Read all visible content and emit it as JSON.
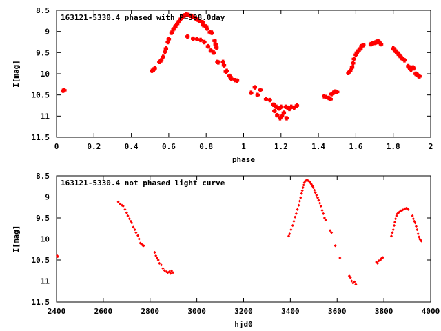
{
  "chart_data": [
    {
      "type": "scatter",
      "title": "163121-5330.4 phased with P=398.0day",
      "xlabel": "phase",
      "ylabel": "I[mag]",
      "xlim": [
        0,
        2
      ],
      "ylim": [
        11.5,
        8.5
      ],
      "y_inverted": true,
      "grid": false,
      "marker_color": "#ff0000",
      "x_ticks": [
        "0",
        "0.2",
        "0.4",
        "0.6",
        "0.8",
        "1",
        "1.2",
        "1.4",
        "1.6",
        "1.8",
        "2"
      ],
      "y_ticks": [
        "8.5",
        "9",
        "9.5",
        "10",
        "10.5",
        "11",
        "11.5"
      ],
      "series": [
        {
          "points": [
            [
              0.035,
              10.4
            ],
            [
              0.042,
              10.39
            ],
            [
              0.51,
              9.93
            ],
            [
              0.52,
              9.9
            ],
            [
              0.525,
              9.87
            ],
            [
              0.55,
              9.72
            ],
            [
              0.56,
              9.68
            ],
            [
              0.57,
              9.6
            ],
            [
              0.58,
              9.48
            ],
            [
              0.585,
              9.4
            ],
            [
              0.595,
              9.25
            ],
            [
              0.6,
              9.18
            ],
            [
              0.615,
              9.03
            ],
            [
              0.625,
              8.95
            ],
            [
              0.635,
              8.88
            ],
            [
              0.645,
              8.82
            ],
            [
              0.655,
              8.76
            ],
            [
              0.665,
              8.7
            ],
            [
              0.675,
              8.65
            ],
            [
              0.685,
              8.62
            ],
            [
              0.695,
              8.6
            ],
            [
              0.7,
              9.12
            ],
            [
              0.705,
              8.61
            ],
            [
              0.715,
              8.63
            ],
            [
              0.725,
              8.65
            ],
            [
              0.73,
              9.17
            ],
            [
              0.74,
              8.68
            ],
            [
              0.745,
              8.7
            ],
            [
              0.75,
              9.18
            ],
            [
              0.755,
              8.72
            ],
            [
              0.765,
              8.75
            ],
            [
              0.77,
              9.2
            ],
            [
              0.78,
              8.78
            ],
            [
              0.785,
              8.85
            ],
            [
              0.79,
              9.25
            ],
            [
              0.8,
              8.88
            ],
            [
              0.805,
              8.93
            ],
            [
              0.81,
              9.35
            ],
            [
              0.82,
              9.02
            ],
            [
              0.825,
              9.45
            ],
            [
              0.83,
              9.03
            ],
            [
              0.84,
              9.5
            ],
            [
              0.845,
              9.22
            ],
            [
              0.85,
              9.3
            ],
            [
              0.855,
              9.38
            ],
            [
              0.86,
              9.72
            ],
            [
              0.865,
              9.73
            ],
            [
              0.89,
              9.72
            ],
            [
              0.895,
              9.8
            ],
            [
              0.905,
              9.95
            ],
            [
              0.91,
              9.93
            ],
            [
              0.925,
              10.05
            ],
            [
              0.93,
              10.08
            ],
            [
              0.935,
              10.12
            ],
            [
              0.955,
              10.15
            ],
            [
              0.965,
              10.16
            ],
            [
              1.04,
              10.45
            ],
            [
              1.06,
              10.32
            ],
            [
              1.075,
              10.5
            ],
            [
              1.09,
              10.38
            ],
            [
              1.12,
              10.6
            ],
            [
              1.14,
              10.62
            ],
            [
              1.16,
              10.73
            ],
            [
              1.165,
              10.88
            ],
            [
              1.175,
              10.78
            ],
            [
              1.18,
              10.98
            ],
            [
              1.19,
              10.82
            ],
            [
              1.195,
              11.05
            ],
            [
              1.2,
              10.78
            ],
            [
              1.205,
              11.0
            ],
            [
              1.215,
              10.92
            ],
            [
              1.225,
              10.78
            ],
            [
              1.23,
              11.05
            ],
            [
              1.235,
              10.8
            ],
            [
              1.245,
              10.83
            ],
            [
              1.255,
              10.78
            ],
            [
              1.27,
              10.8
            ],
            [
              1.285,
              10.75
            ],
            [
              1.43,
              10.53
            ],
            [
              1.44,
              10.55
            ],
            [
              1.455,
              10.57
            ],
            [
              1.465,
              10.6
            ],
            [
              1.47,
              10.48
            ],
            [
              1.48,
              10.45
            ],
            [
              1.49,
              10.42
            ],
            [
              1.5,
              10.43
            ],
            [
              1.56,
              9.98
            ],
            [
              1.57,
              9.93
            ],
            [
              1.58,
              9.85
            ],
            [
              1.585,
              9.75
            ],
            [
              1.59,
              9.65
            ],
            [
              1.6,
              9.55
            ],
            [
              1.605,
              9.5
            ],
            [
              1.615,
              9.45
            ],
            [
              1.625,
              9.4
            ],
            [
              1.63,
              9.35
            ],
            [
              1.64,
              9.32
            ],
            [
              1.68,
              9.3
            ],
            [
              1.69,
              9.28
            ],
            [
              1.7,
              9.27
            ],
            [
              1.705,
              9.26
            ],
            [
              1.71,
              9.25
            ],
            [
              1.715,
              9.24
            ],
            [
              1.72,
              9.23
            ],
            [
              1.725,
              9.25
            ],
            [
              1.73,
              9.27
            ],
            [
              1.735,
              9.3
            ],
            [
              1.8,
              9.4
            ],
            [
              1.805,
              9.42
            ],
            [
              1.81,
              9.45
            ],
            [
              1.815,
              9.48
            ],
            [
              1.82,
              9.5
            ],
            [
              1.825,
              9.52
            ],
            [
              1.83,
              9.55
            ],
            [
              1.84,
              9.6
            ],
            [
              1.85,
              9.65
            ],
            [
              1.86,
              9.68
            ],
            [
              1.88,
              9.82
            ],
            [
              1.885,
              9.85
            ],
            [
              1.89,
              9.88
            ],
            [
              1.895,
              9.9
            ],
            [
              1.9,
              9.87
            ],
            [
              1.905,
              9.85
            ],
            [
              1.91,
              9.87
            ],
            [
              1.92,
              10.0
            ],
            [
              1.925,
              10.02
            ],
            [
              1.93,
              10.03
            ],
            [
              1.935,
              10.05
            ],
            [
              1.94,
              10.06
            ]
          ]
        }
      ]
    },
    {
      "type": "scatter",
      "title": "163121-5330.4 not phased light curve",
      "xlabel": "hjd0",
      "ylabel": "I[mag]",
      "xlim": [
        2400,
        4000
      ],
      "ylim": [
        11.5,
        8.5
      ],
      "y_inverted": true,
      "grid": false,
      "marker_color": "#ff0000",
      "x_ticks": [
        "2400",
        "2600",
        "2800",
        "3000",
        "3200",
        "3400",
        "3600",
        "3800",
        "4000"
      ],
      "y_ticks": [
        "8.5",
        "9",
        "9.5",
        "10",
        "10.5",
        "11",
        "11.5"
      ],
      "series": [
        {
          "points": [
            [
              2403,
              10.4
            ],
            [
              2405,
              10.42
            ],
            [
              2664,
              9.12
            ],
            [
              2672,
              9.17
            ],
            [
              2680,
              9.2
            ],
            [
              2685,
              9.22
            ],
            [
              2693,
              9.3
            ],
            [
              2700,
              9.38
            ],
            [
              2705,
              9.45
            ],
            [
              2712,
              9.52
            ],
            [
              2718,
              9.58
            ],
            [
              2722,
              9.62
            ],
            [
              2728,
              9.72
            ],
            [
              2735,
              9.78
            ],
            [
              2740,
              9.85
            ],
            [
              2748,
              9.92
            ],
            [
              2753,
              10.0
            ],
            [
              2758,
              10.1
            ],
            [
              2763,
              10.12
            ],
            [
              2768,
              10.15
            ],
            [
              2773,
              10.16
            ],
            [
              2820,
              10.32
            ],
            [
              2825,
              10.4
            ],
            [
              2830,
              10.45
            ],
            [
              2835,
              10.5
            ],
            [
              2840,
              10.58
            ],
            [
              2848,
              10.62
            ],
            [
              2855,
              10.7
            ],
            [
              2862,
              10.75
            ],
            [
              2870,
              10.78
            ],
            [
              2876,
              10.8
            ],
            [
              2882,
              10.78
            ],
            [
              2888,
              10.82
            ],
            [
              2892,
              10.76
            ],
            [
              2898,
              10.8
            ],
            [
              3393,
              9.93
            ],
            [
              3397,
              9.88
            ],
            [
              3403,
              9.78
            ],
            [
              3410,
              9.68
            ],
            [
              3415,
              9.58
            ],
            [
              3420,
              9.48
            ],
            [
              3425,
              9.4
            ],
            [
              3430,
              9.3
            ],
            [
              3436,
              9.2
            ],
            [
              3440,
              9.1
            ],
            [
              3444,
              9.02
            ],
            [
              3448,
              8.92
            ],
            [
              3451,
              8.85
            ],
            [
              3454,
              8.78
            ],
            [
              3457,
              8.72
            ],
            [
              3460,
              8.66
            ],
            [
              3464,
              8.62
            ],
            [
              3468,
              8.61
            ],
            [
              3471,
              8.6
            ],
            [
              3474,
              8.61
            ],
            [
              3478,
              8.62
            ],
            [
              3482,
              8.64
            ],
            [
              3486,
              8.67
            ],
            [
              3490,
              8.7
            ],
            [
              3494,
              8.74
            ],
            [
              3498,
              8.78
            ],
            [
              3503,
              8.84
            ],
            [
              3507,
              8.9
            ],
            [
              3512,
              8.96
            ],
            [
              3517,
              9.02
            ],
            [
              3521,
              9.08
            ],
            [
              3526,
              9.15
            ],
            [
              3531,
              9.22
            ],
            [
              3536,
              9.32
            ],
            [
              3541,
              9.4
            ],
            [
              3546,
              9.5
            ],
            [
              3551,
              9.55
            ],
            [
              3570,
              9.8
            ],
            [
              3576,
              9.85
            ],
            [
              3592,
              10.16
            ],
            [
              3612,
              10.45
            ],
            [
              3652,
              10.88
            ],
            [
              3657,
              10.92
            ],
            [
              3662,
              11.0
            ],
            [
              3668,
              11.05
            ],
            [
              3674,
              11.02
            ],
            [
              3680,
              11.08
            ],
            [
              3768,
              10.55
            ],
            [
              3773,
              10.58
            ],
            [
              3778,
              10.52
            ],
            [
              3785,
              10.5
            ],
            [
              3790,
              10.46
            ],
            [
              3796,
              10.44
            ],
            [
              3832,
              9.93
            ],
            [
              3836,
              9.85
            ],
            [
              3840,
              9.78
            ],
            [
              3844,
              9.68
            ],
            [
              3847,
              9.6
            ],
            [
              3850,
              9.52
            ],
            [
              3854,
              9.45
            ],
            [
              3858,
              9.4
            ],
            [
              3862,
              9.38
            ],
            [
              3866,
              9.36
            ],
            [
              3873,
              9.33
            ],
            [
              3880,
              9.31
            ],
            [
              3886,
              9.3
            ],
            [
              3891,
              9.28
            ],
            [
              3896,
              9.27
            ],
            [
              3900,
              9.28
            ],
            [
              3904,
              9.3
            ],
            [
              3922,
              9.45
            ],
            [
              3926,
              9.52
            ],
            [
              3930,
              9.58
            ],
            [
              3934,
              9.62
            ],
            [
              3938,
              9.7
            ],
            [
              3942,
              9.78
            ],
            [
              3946,
              9.88
            ],
            [
              3950,
              9.95
            ],
            [
              3953,
              10.0
            ],
            [
              3956,
              10.02
            ],
            [
              3960,
              10.05
            ]
          ]
        }
      ]
    }
  ]
}
